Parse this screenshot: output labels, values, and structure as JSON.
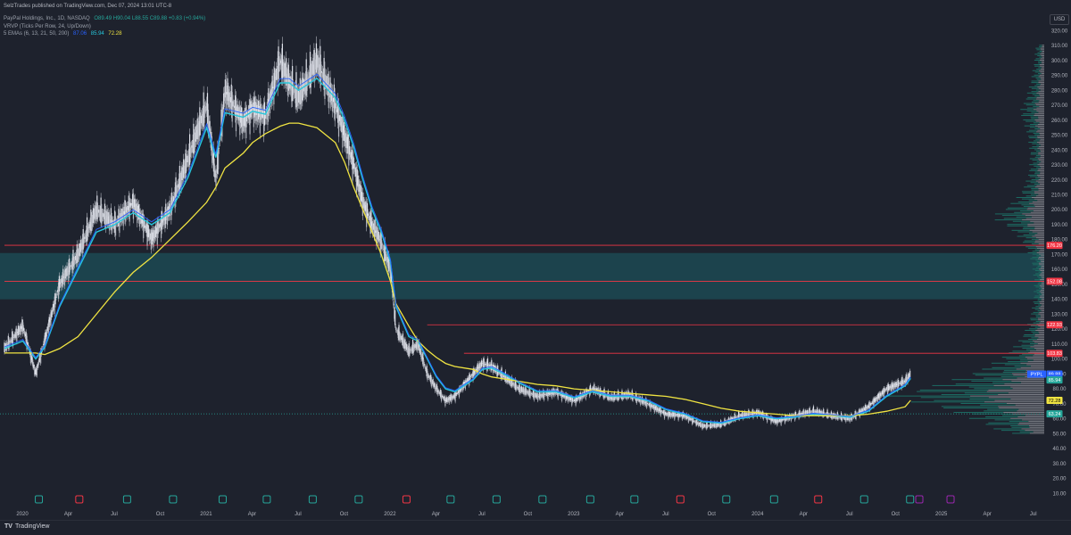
{
  "header": {
    "publisher": "SelzTrades published on TradingView.com, Dec 07, 2024 13:01 UTC-8",
    "symbol": "PayPal Holdings, Inc., 1D, NASDAQ",
    "ohlc": "O89.49 H90.04 L88.55 C89.88 +0.83 (+0.94%)",
    "vrvp": "VRVP (Ticks Per Row, 24, Up/Down)",
    "ema_label": "5 EMAs (6, 13, 21, 50, 200)",
    "ema_values": [
      "87.06",
      "85.94",
      "72.28"
    ]
  },
  "axis": {
    "currency": "USD"
  },
  "footer": {
    "brand": "TradingView"
  },
  "colors": {
    "background": "#1e222d",
    "candle": "#b2b5be",
    "ema_fast": "#2962ff",
    "ema_mid": "#26c6da",
    "ema_slow": "#f0e442",
    "resistance": "#f23645",
    "zone": "#1c4f58",
    "volume_up": "#1d6b62",
    "volume_down": "#7c7f87",
    "earnings": "#26a69a",
    "earnings_neg": "#f23645",
    "dividend": "#9c27b0"
  },
  "chart_data": {
    "type": "line",
    "title": "PayPal Holdings, Inc., 1D, NASDAQ",
    "xlabel": "",
    "ylabel": "",
    "ylim": [
      0,
      325
    ],
    "grid": false,
    "legend": "top-left",
    "x_ticks": [
      "2020",
      "Apr",
      "Jul",
      "Oct",
      "2021",
      "Apr",
      "Jul",
      "Oct",
      "2022",
      "Apr",
      "Jul",
      "Oct",
      "2023",
      "Apr",
      "Jul",
      "Oct",
      "2024",
      "Apr",
      "Jul",
      "Oct",
      "2025",
      "Apr",
      "Jul"
    ],
    "y_ticks": [
      10,
      20,
      30,
      40,
      50,
      60,
      70,
      80,
      90,
      100,
      110,
      120,
      130,
      140,
      150,
      160,
      170,
      180,
      190,
      200,
      210,
      220,
      230,
      240,
      250,
      260,
      270,
      280,
      290,
      300,
      310,
      320
    ],
    "x": [
      2020.0,
      2020.1,
      2020.17,
      2020.22,
      2020.3,
      2020.4,
      2020.5,
      2020.6,
      2020.7,
      2020.8,
      2020.9,
      2021.0,
      2021.1,
      2021.15,
      2021.2,
      2021.3,
      2021.35,
      2021.42,
      2021.5,
      2021.55,
      2021.6,
      2021.7,
      2021.8,
      2021.85,
      2021.9,
      2021.95,
      2022.0,
      2022.05,
      2022.1,
      2022.13,
      2022.2,
      2022.25,
      2022.3,
      2022.35,
      2022.4,
      2022.45,
      2022.55,
      2022.6,
      2022.65,
      2022.7,
      2022.8,
      2022.9,
      2023.0,
      2023.1,
      2023.2,
      2023.3,
      2023.4,
      2023.5,
      2023.6,
      2023.7,
      2023.8,
      2023.9,
      2024.0,
      2024.1,
      2024.2,
      2024.3,
      2024.4,
      2024.5,
      2024.6,
      2024.7,
      2024.8,
      2024.9,
      2024.93
    ],
    "series": [
      {
        "name": "PYPL",
        "values": [
          107,
          122,
          90,
          113,
          150,
          170,
          200,
          190,
          205,
          180,
          200,
          235,
          270,
          220,
          280,
          258,
          268,
          262,
          300,
          285,
          275,
          300,
          270,
          250,
          230,
          205,
          190,
          178,
          160,
          120,
          105,
          110,
          90,
          80,
          72,
          75,
          90,
          97,
          95,
          90,
          80,
          75,
          78,
          72,
          80,
          74,
          76,
          70,
          63,
          62,
          55,
          56,
          62,
          64,
          58,
          62,
          65,
          62,
          60,
          68,
          80,
          85,
          89.88
        ]
      },
      {
        "name": "EMA 50",
        "values": [
          107,
          112,
          100,
          108,
          135,
          160,
          185,
          190,
          198,
          190,
          198,
          222,
          255,
          235,
          265,
          262,
          266,
          264,
          285,
          285,
          280,
          288,
          275,
          260,
          242,
          220,
          200,
          185,
          165,
          135,
          115,
          112,
          100,
          88,
          80,
          78,
          86,
          93,
          94,
          91,
          84,
          78,
          78,
          74,
          78,
          75,
          75,
          72,
          66,
          63,
          58,
          57,
          60,
          62,
          60,
          61,
          63,
          62,
          61,
          65,
          75,
          82,
          87.06
        ]
      },
      {
        "name": "EMA 200",
        "values": [
          104,
          104,
          104,
          103,
          107,
          115,
          130,
          145,
          158,
          168,
          180,
          192,
          205,
          215,
          228,
          238,
          245,
          251,
          256,
          258,
          258,
          255,
          245,
          232,
          215,
          200,
          185,
          170,
          152,
          137,
          122,
          112,
          106,
          101,
          97,
          95,
          93,
          90,
          88,
          87,
          85,
          83,
          82,
          80,
          79,
          78,
          77,
          76,
          75,
          73,
          70,
          67,
          65,
          64,
          63,
          62,
          62,
          62,
          62,
          63,
          65,
          68,
          72.28
        ]
      }
    ],
    "price_labels": [
      {
        "label": "176.20",
        "value": 176.2,
        "color": "#f23645"
      },
      {
        "label": "152.08",
        "value": 152.08,
        "color": "#f23645"
      },
      {
        "label": "122.93",
        "value": 122.93,
        "color": "#f23645"
      },
      {
        "label": "103.83",
        "value": 103.83,
        "color": "#f23645"
      },
      {
        "label": "89.88",
        "value": 89.88,
        "color": "#2962ff",
        "tag": "PYPL"
      },
      {
        "label": "87.06",
        "value": 87.06,
        "color": "#2962ff"
      },
      {
        "label": "85.94",
        "value": 85.94,
        "color": "#26a69a"
      },
      {
        "label": "72.28",
        "value": 72.28,
        "color": "#f0e442",
        "text_color": "#000000"
      },
      {
        "label": "63.24",
        "value": 63.24,
        "color": "#26a69a"
      }
    ],
    "resistance_lines": [
      {
        "value": 176.2,
        "x_start": 2020.0
      },
      {
        "value": 152.08,
        "x_start": 2020.0
      },
      {
        "value": 122.93,
        "x_start": 2022.3
      },
      {
        "value": 103.83,
        "x_start": 2022.5
      }
    ],
    "zone": {
      "low": 140,
      "high": 171
    },
    "support_dotted": 63.24,
    "earnings_markers": [
      {
        "x": 2020.09,
        "kind": "E"
      },
      {
        "x": 2020.31,
        "kind": "E-neg"
      },
      {
        "x": 2020.57,
        "kind": "E"
      },
      {
        "x": 2020.82,
        "kind": "E"
      },
      {
        "x": 2021.09,
        "kind": "E"
      },
      {
        "x": 2021.33,
        "kind": "E"
      },
      {
        "x": 2021.58,
        "kind": "E"
      },
      {
        "x": 2021.83,
        "kind": "E"
      },
      {
        "x": 2022.09,
        "kind": "E-neg"
      },
      {
        "x": 2022.33,
        "kind": "E"
      },
      {
        "x": 2022.58,
        "kind": "E"
      },
      {
        "x": 2022.83,
        "kind": "E"
      },
      {
        "x": 2023.09,
        "kind": "E"
      },
      {
        "x": 2023.33,
        "kind": "E"
      },
      {
        "x": 2023.58,
        "kind": "E-neg"
      },
      {
        "x": 2023.83,
        "kind": "E"
      },
      {
        "x": 2024.09,
        "kind": "E"
      },
      {
        "x": 2024.33,
        "kind": "E-neg"
      },
      {
        "x": 2024.58,
        "kind": "E"
      },
      {
        "x": 2024.83,
        "kind": "E"
      },
      {
        "x": 2024.88,
        "kind": "D"
      },
      {
        "x": 2025.05,
        "kind": "D"
      }
    ],
    "volume_profile_top": {
      "max_price": 310,
      "min_price": 50
    }
  }
}
